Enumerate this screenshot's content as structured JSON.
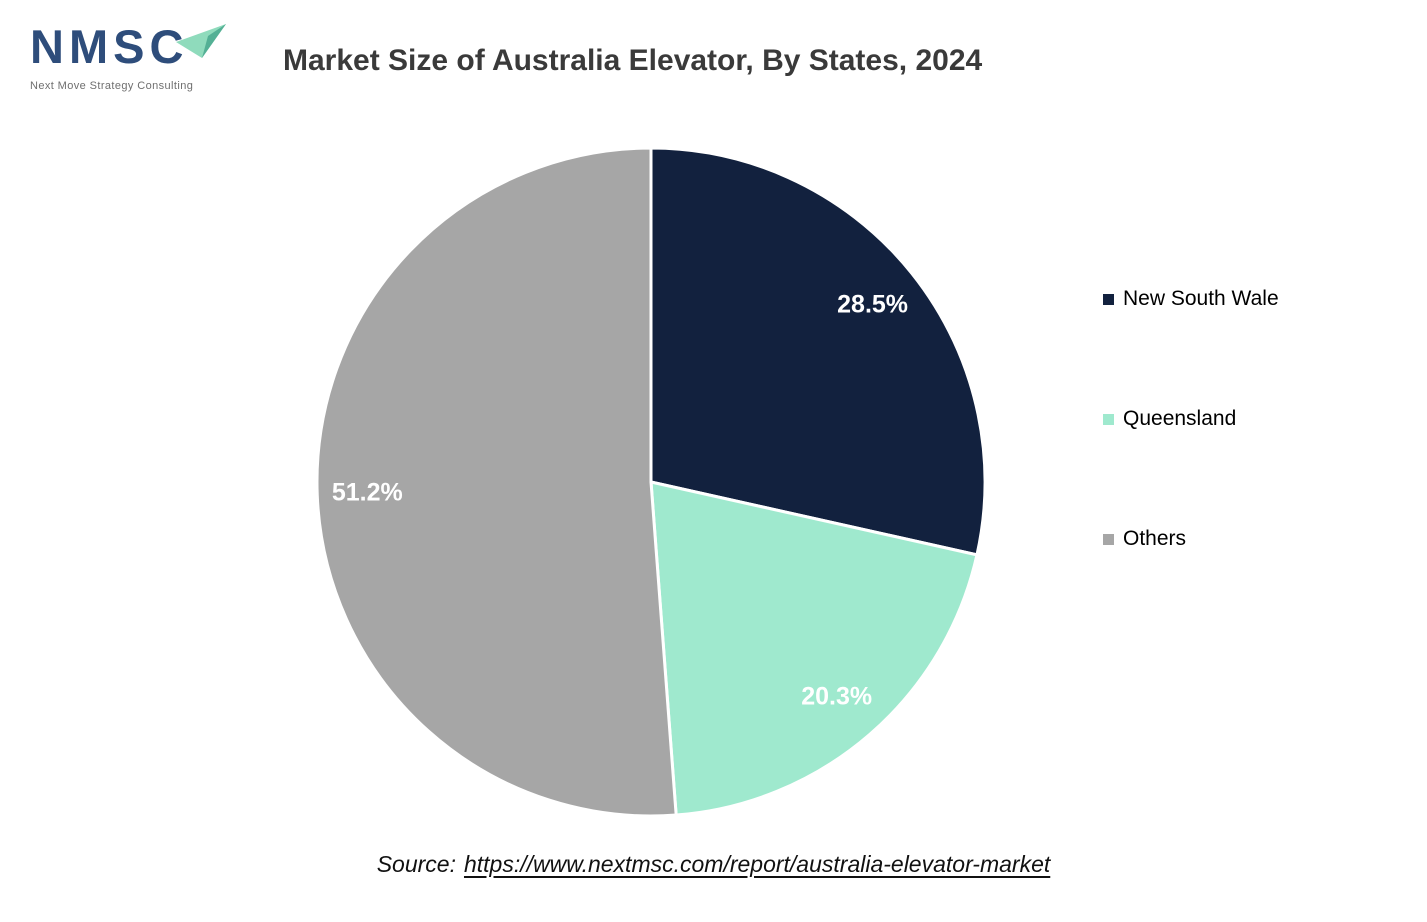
{
  "logo": {
    "acronym": "NMSC",
    "tagline": "Next Move Strategy Consulting",
    "colors": {
      "navy": "#2E4D7B",
      "arrow_light": "#8FDBBC",
      "arrow_dark": "#54B095"
    }
  },
  "header": {
    "title": "Market Size of Australia Elevator, By States, 2024"
  },
  "chart_data": {
    "type": "pie",
    "title": "Market Size of Australia Elevator, By States, 2024",
    "categories": [
      "New South Wale",
      "Queensland",
      "Others"
    ],
    "values": [
      28.5,
      20.3,
      51.2
    ],
    "value_labels": [
      "28.5%",
      "20.3%",
      "51.2%"
    ],
    "slice_colors": [
      "#12213E",
      "#9FE9CE",
      "#A6A6A6"
    ],
    "data_label_color": "#FFFFFF",
    "start_angle_deg": 0,
    "direction": "clockwise",
    "units": "percent",
    "legend_position": "right",
    "legend": [
      "New South Wale",
      "Queensland",
      "Others"
    ]
  },
  "footer": {
    "source_prefix": "Source:",
    "source_url": "https://www.nextmsc.com/report/australia-elevator-market"
  }
}
